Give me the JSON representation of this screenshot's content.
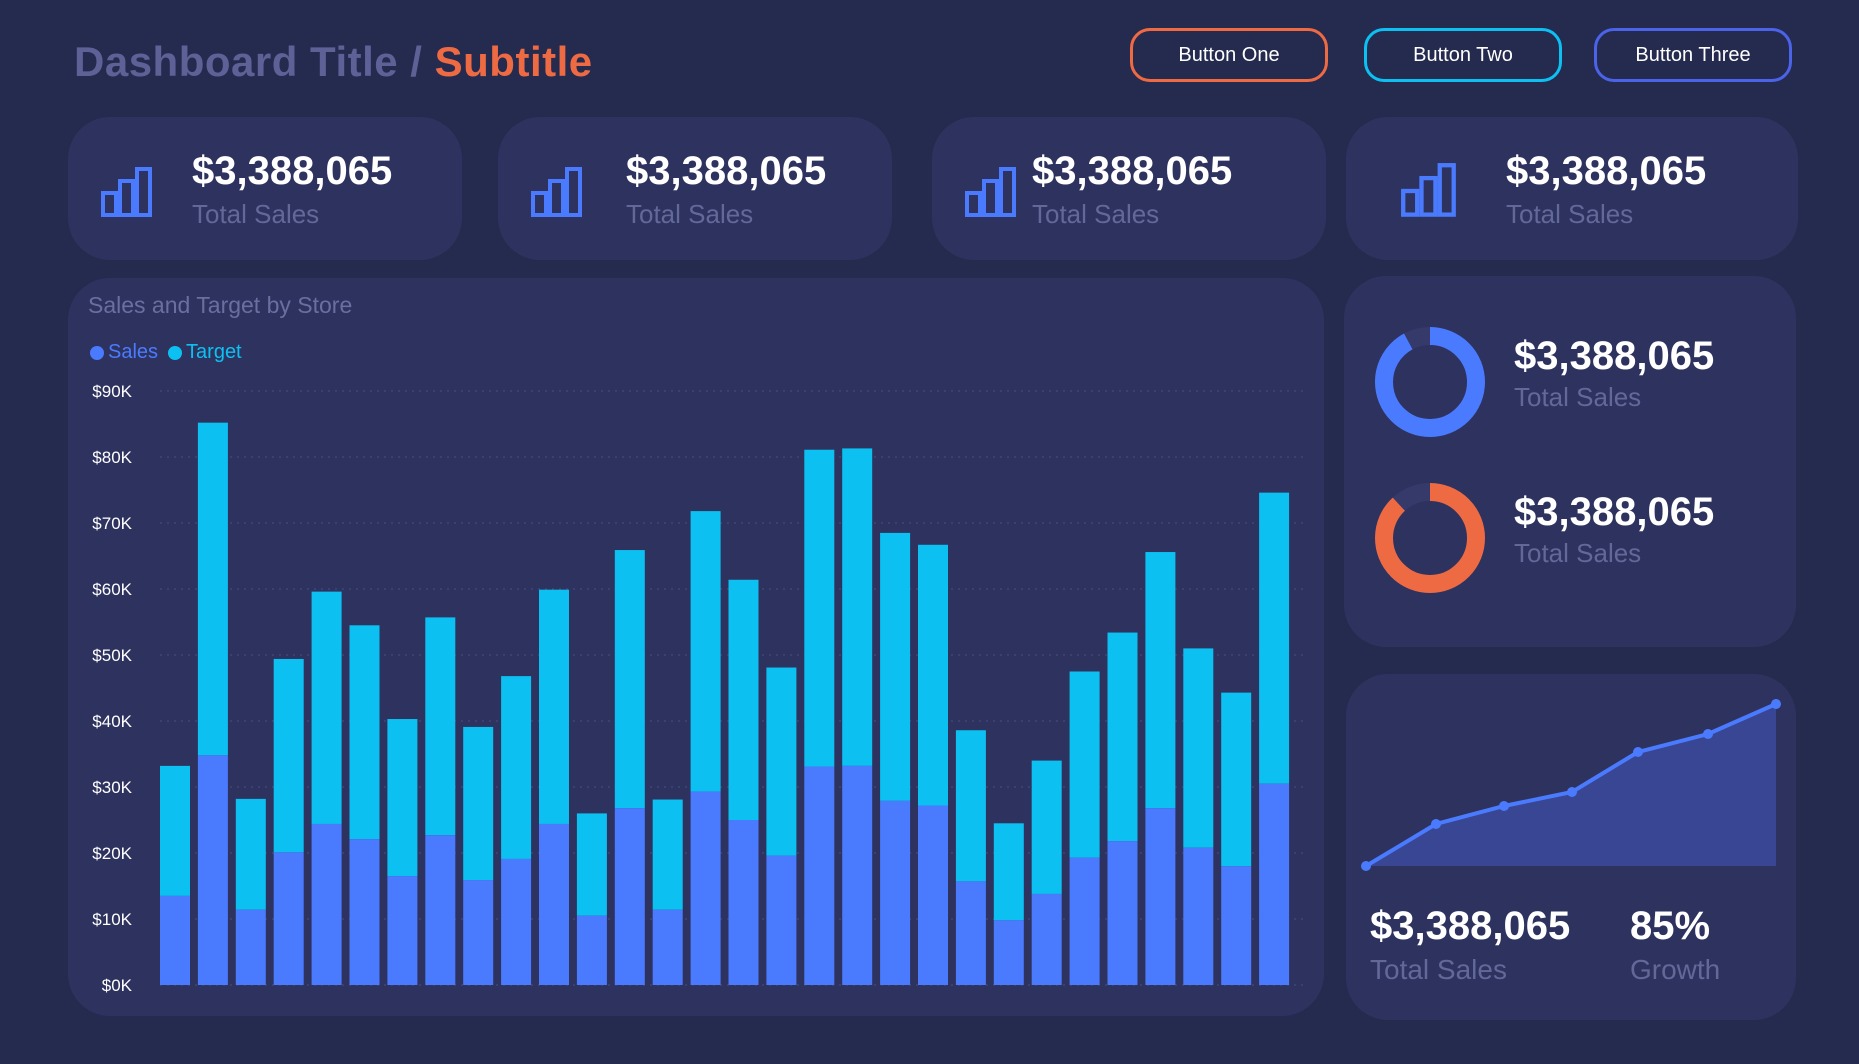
{
  "header": {
    "title": "Dashboard Title",
    "separator": "/",
    "subtitle": "Subtitle",
    "buttons": [
      "Button One",
      "Button Two",
      "Button Three"
    ]
  },
  "kpis": [
    {
      "value": "$3,388,065",
      "label": "Total Sales",
      "icon": "bar-chart-icon"
    },
    {
      "value": "$3,388,065",
      "label": "Total Sales",
      "icon": "bar-chart-icon"
    },
    {
      "value": "$3,388,065",
      "label": "Total Sales",
      "icon": "bar-chart-icon"
    },
    {
      "value": "$3,388,065",
      "label": "Total Sales",
      "icon": "bar-chart-icon"
    }
  ],
  "donuts": [
    {
      "value": "$3,388,065",
      "label": "Total Sales",
      "fraction": 0.92,
      "color": "#4a7bff"
    },
    {
      "value": "$3,388,065",
      "label": "Total Sales",
      "fraction": 0.88,
      "color": "#ee6a43"
    }
  ],
  "area": {
    "value": "$3,388,065",
    "label": "Total Sales",
    "growth": "85%",
    "growth_label": "Growth"
  },
  "colors": {
    "background": "#252a4f",
    "card": "#2e325f",
    "sales": "#4a7bff",
    "target": "#0cc1f2",
    "accent": "#ee6a43"
  },
  "chart_data": {
    "type": "bar",
    "stacked": true,
    "title": "Sales and Target by Store",
    "legend": [
      "Sales",
      "Target"
    ],
    "ylim": [
      0,
      90000
    ],
    "yticks": [
      "$0K",
      "$10K",
      "$20K",
      "$30K",
      "$40K",
      "$50K",
      "$60K",
      "$70K",
      "$80K",
      "$90K"
    ],
    "grid": true,
    "series": [
      {
        "name": "Sales",
        "values": [
          13500,
          34800,
          11400,
          20100,
          24400,
          22100,
          16500,
          22700,
          15900,
          19100,
          24400,
          10500,
          26800,
          11400,
          29300,
          25000,
          19600,
          33100,
          33200,
          27900,
          27200,
          15700,
          9800,
          13800,
          19300,
          21800,
          26800,
          20800,
          18000,
          30500
        ]
      },
      {
        "name": "Target",
        "values": [
          19700,
          50400,
          16800,
          29300,
          35200,
          32400,
          23800,
          33000,
          23200,
          27700,
          35500,
          15500,
          39100,
          16700,
          42500,
          36400,
          28500,
          48000,
          48100,
          40600,
          39500,
          22900,
          14700,
          20200,
          28200,
          31600,
          38800,
          30200,
          26300,
          44100
        ]
      }
    ]
  }
}
